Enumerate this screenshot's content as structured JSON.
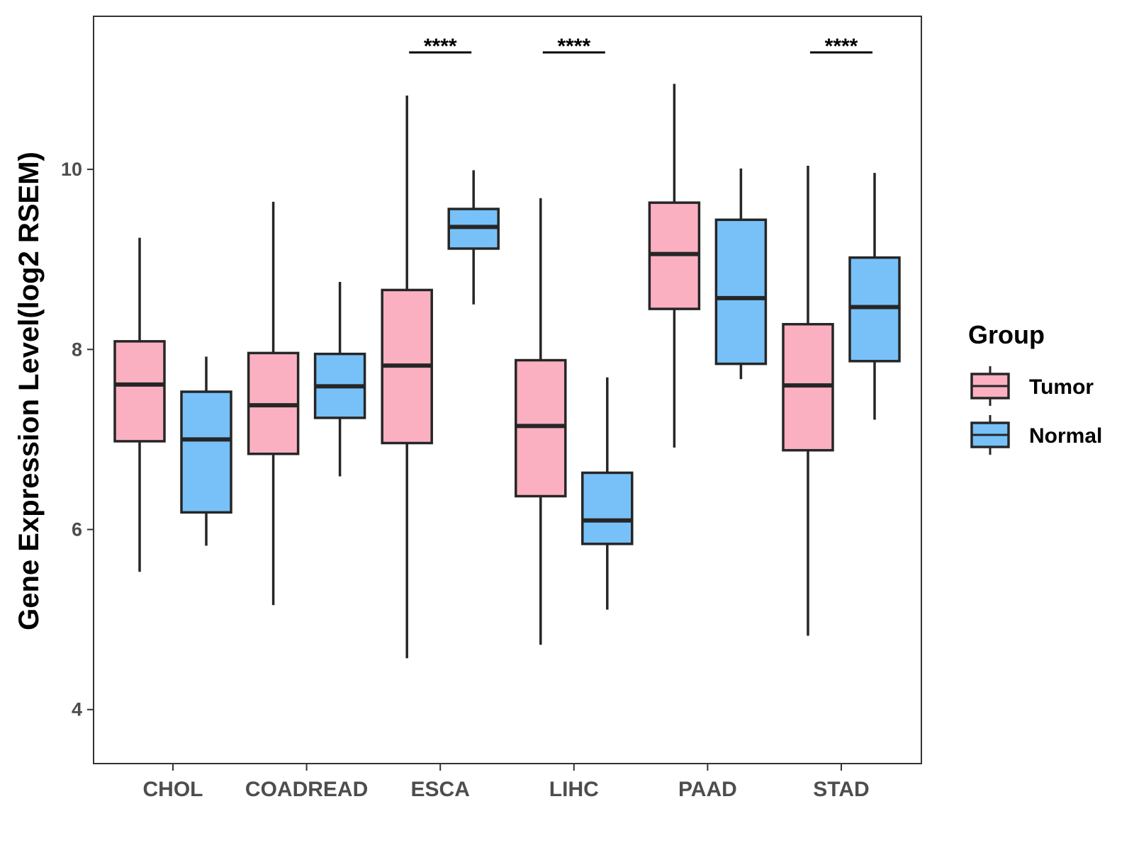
{
  "chart_data": {
    "type": "boxplot",
    "ylabel": "Gene Expression Level(log2 RSEM)",
    "xlabel": "",
    "ylim": [
      3.4,
      11.7
    ],
    "yticks": [
      4,
      6,
      8,
      10
    ],
    "categories": [
      "CHOL",
      "COADREAD",
      "ESCA",
      "LIHC",
      "PAAD",
      "STAD"
    ],
    "legend": {
      "title": "Group",
      "position": "right",
      "items": [
        {
          "name": "Tumor",
          "color": "#FBB0C2"
        },
        {
          "name": "Normal",
          "color": "#77C1F8"
        }
      ]
    },
    "series": [
      {
        "name": "Tumor",
        "color": "#FBB0C2",
        "boxes": [
          {
            "min": 5.53,
            "q1": 6.98,
            "median": 7.61,
            "q3": 8.09,
            "max": 9.24
          },
          {
            "min": 5.16,
            "q1": 6.84,
            "median": 7.38,
            "q3": 7.96,
            "max": 9.64
          },
          {
            "min": 4.57,
            "q1": 6.96,
            "median": 7.82,
            "q3": 8.66,
            "max": 10.82
          },
          {
            "min": 4.72,
            "q1": 6.37,
            "median": 7.15,
            "q3": 7.88,
            "max": 9.68
          },
          {
            "min": 6.91,
            "q1": 8.45,
            "median": 9.06,
            "q3": 9.63,
            "max": 10.95
          },
          {
            "min": 4.82,
            "q1": 6.88,
            "median": 7.6,
            "q3": 8.28,
            "max": 10.04
          }
        ]
      },
      {
        "name": "Normal",
        "color": "#77C1F8",
        "boxes": [
          {
            "min": 5.82,
            "q1": 6.19,
            "median": 7.0,
            "q3": 7.53,
            "max": 7.92
          },
          {
            "min": 6.59,
            "q1": 7.24,
            "median": 7.59,
            "q3": 7.95,
            "max": 8.75
          },
          {
            "min": 8.5,
            "q1": 9.12,
            "median": 9.36,
            "q3": 9.56,
            "max": 9.99
          },
          {
            "min": 5.11,
            "q1": 5.84,
            "median": 6.1,
            "q3": 6.63,
            "max": 7.69
          },
          {
            "min": 7.67,
            "q1": 7.84,
            "median": 8.57,
            "q3": 9.44,
            "max": 10.01
          },
          {
            "min": 7.22,
            "q1": 7.87,
            "median": 8.47,
            "q3": 9.02,
            "max": 9.96
          }
        ]
      }
    ],
    "annotations": [
      {
        "category": "ESCA",
        "text": "****"
      },
      {
        "category": "LIHC",
        "text": "****"
      },
      {
        "category": "STAD",
        "text": "****"
      }
    ]
  }
}
